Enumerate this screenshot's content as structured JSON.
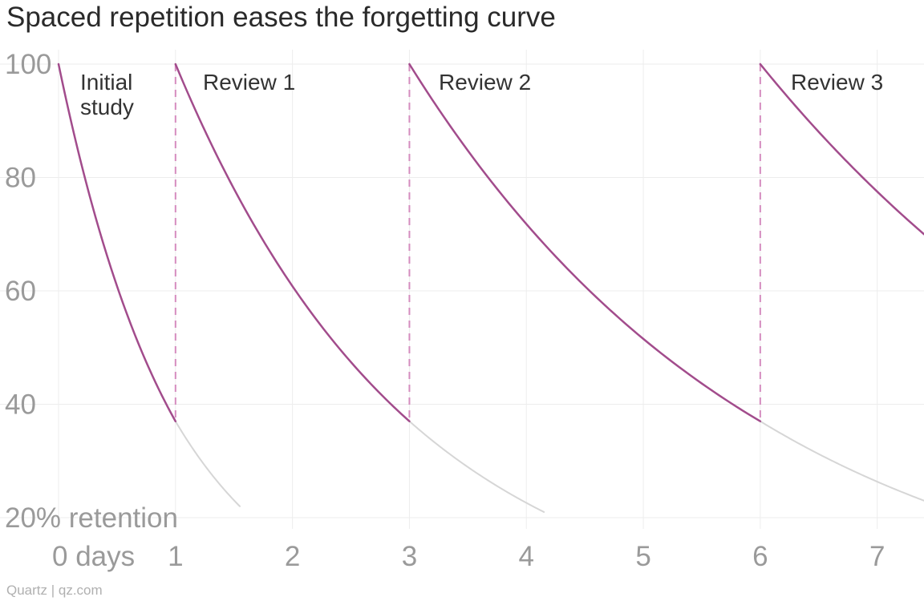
{
  "chart_data": {
    "type": "line",
    "title": "Spaced repetition eases the forgetting curve",
    "xlabel": "days",
    "ylabel": "% retention",
    "xlim": [
      0,
      7.4
    ],
    "ylim": [
      15,
      100
    ],
    "grid": true,
    "y_ticks": [
      {
        "value": 20,
        "label": "20% retention"
      },
      {
        "value": 40,
        "label": "40"
      },
      {
        "value": 60,
        "label": "60"
      },
      {
        "value": 80,
        "label": "80"
      },
      {
        "value": 100,
        "label": "100"
      }
    ],
    "x_ticks": [
      {
        "value": 0,
        "label": "0 days"
      },
      {
        "value": 1,
        "label": "1"
      },
      {
        "value": 2,
        "label": "2"
      },
      {
        "value": 3,
        "label": "3"
      },
      {
        "value": 4,
        "label": "4"
      },
      {
        "value": 5,
        "label": "5"
      },
      {
        "value": 6,
        "label": "6"
      },
      {
        "value": 7,
        "label": "7"
      }
    ],
    "series": [
      {
        "name": "Initial study",
        "type": "retention",
        "start_day": 0,
        "end_day": 1,
        "x": [
          0,
          0.25,
          0.5,
          0.75,
          1
        ],
        "values": [
          100,
          78,
          61,
          47,
          37
        ]
      },
      {
        "name": "Initial study (without review)",
        "type": "decay",
        "start_day": 1,
        "end_day": 1.55,
        "x": [
          1,
          1.25,
          1.55
        ],
        "values": [
          37,
          29,
          22
        ]
      },
      {
        "name": "Review 1",
        "type": "retention",
        "start_day": 1,
        "end_day": 3,
        "x": [
          1,
          1.5,
          2,
          2.5,
          3
        ],
        "values": [
          100,
          78,
          61,
          47,
          37
        ]
      },
      {
        "name": "Review 1 (without review)",
        "type": "decay",
        "start_day": 3,
        "end_day": 4.15,
        "x": [
          3,
          3.5,
          4.15
        ],
        "values": [
          37,
          29,
          21
        ]
      },
      {
        "name": "Review 2",
        "type": "retention",
        "start_day": 3,
        "end_day": 6,
        "x": [
          3,
          3.75,
          4.5,
          5.25,
          6
        ],
        "values": [
          100,
          78,
          61,
          47,
          37
        ]
      },
      {
        "name": "Review 2 (without review)",
        "type": "decay",
        "start_day": 6,
        "end_day": 7.4,
        "x": [
          6,
          6.7,
          7.4
        ],
        "values": [
          37,
          29,
          23
        ]
      },
      {
        "name": "Review 3",
        "type": "retention",
        "start_day": 6,
        "end_day": 7.4,
        "x": [
          6,
          6.5,
          7,
          7.4
        ],
        "values": [
          100,
          86,
          77,
          70
        ]
      }
    ],
    "review_markers": [
      1,
      3,
      6
    ],
    "annotations": [
      {
        "text": [
          "Initial",
          "study"
        ],
        "day": 0
      },
      {
        "text": [
          "Review 1"
        ],
        "day": 1
      },
      {
        "text": [
          "Review 2"
        ],
        "day": 3
      },
      {
        "text": [
          "Review 3"
        ],
        "day": 6
      }
    ],
    "colors": {
      "review": "#a24c8c",
      "decay": "#d6d6d6",
      "marker": "#d58cbf",
      "grid": "#ededed",
      "tick": "#9a9a9a"
    }
  },
  "footer": {
    "credit": "Quartz | qz.com"
  }
}
